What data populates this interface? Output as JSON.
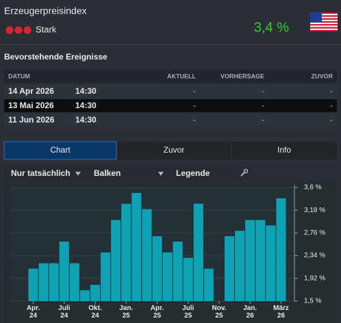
{
  "header": {
    "title": "Erzeugerpreisindex",
    "importance": "Stark",
    "value": "3,4 %"
  },
  "events": {
    "title": "Bevorstehende Ereignisse",
    "columns": [
      "DATUM",
      "AKTUELL",
      "VORHERSAGE",
      "ZUVOR"
    ],
    "rows": [
      {
        "date": "14 Apr 2026",
        "time": "14:30",
        "actual": "-",
        "forecast": "-",
        "previous": "-"
      },
      {
        "date": "13 Mai 2026",
        "time": "14:30",
        "actual": "-",
        "forecast": "-",
        "previous": "-"
      },
      {
        "date": "11 Jun 2026",
        "time": "14:30",
        "actual": "-",
        "forecast": "-",
        "previous": "-"
      }
    ]
  },
  "tabs": [
    "Chart",
    "Zuvor",
    "Info"
  ],
  "toolbar": [
    "Nur tatsächlich",
    "Balken",
    "Legende"
  ],
  "chart_data": {
    "type": "bar",
    "categories": [
      "Apr. 24",
      null,
      null,
      "Juli 24",
      null,
      null,
      "Okt. 24",
      null,
      null,
      "Jan. 25",
      null,
      null,
      "Apr. 25",
      null,
      null,
      "Juli 25",
      null,
      null,
      "Nov. 25",
      null,
      null,
      "Jan. 26",
      null,
      null,
      "März 26"
    ],
    "values": [
      2.1,
      2.2,
      2.2,
      2.6,
      2.2,
      1.7,
      1.8,
      2.4,
      3.0,
      3.3,
      3.5,
      3.2,
      2.7,
      2.4,
      2.6,
      2.3,
      3.3,
      2.1,
      null,
      2.7,
      2.8,
      3.0,
      3.0,
      2.9,
      3.4
    ],
    "color": "#0fa2b4",
    "ylim": [
      1.5,
      3.6
    ],
    "yticks": [
      {
        "value": 1.5,
        "label": "1,5 %"
      },
      {
        "value": 1.92,
        "label": "1,92 %"
      },
      {
        "value": 2.34,
        "label": "2,34 %"
      },
      {
        "value": 2.76,
        "label": "2,76 %"
      },
      {
        "value": 3.18,
        "label": "3,18 %"
      },
      {
        "value": 3.6,
        "label": "3,6 %"
      }
    ],
    "grid": true
  }
}
